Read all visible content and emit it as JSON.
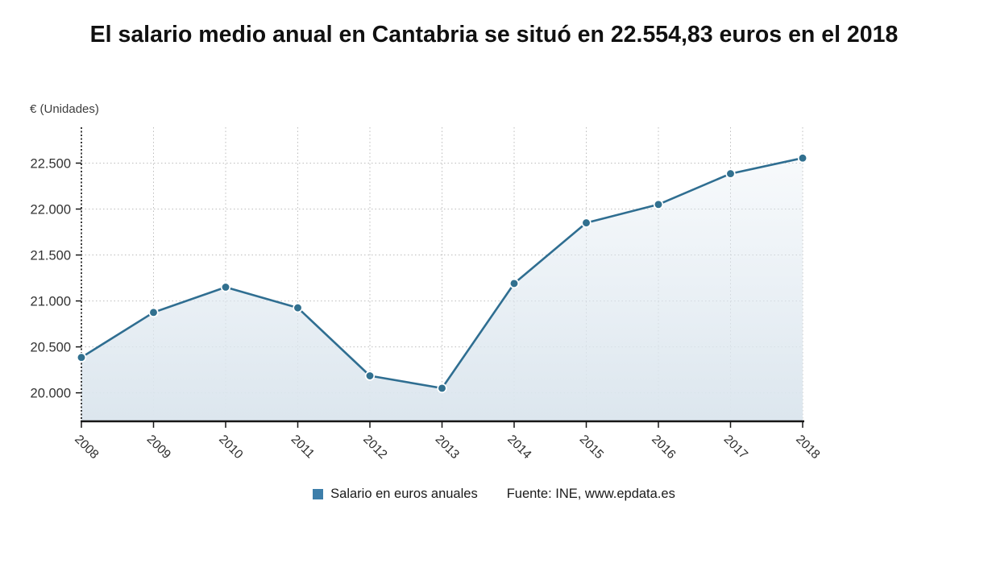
{
  "chart_data": {
    "type": "area",
    "title": "El salario medio anual en Cantabria se situó en 22.554,83 euros en el 2018",
    "unit_label": "€ (Unidades)",
    "categories": [
      "2008",
      "2009",
      "2010",
      "2011",
      "2012",
      "2013",
      "2014",
      "2015",
      "2016",
      "2017",
      "2018"
    ],
    "series": [
      {
        "name": "Salario en euros anuales",
        "values": [
          20385,
          20875,
          21150,
          20925,
          20185,
          20050,
          21190,
          21850,
          22050,
          22385,
          22554.83
        ]
      }
    ],
    "y_ticks": [
      {
        "value": 20000,
        "label": "20.000"
      },
      {
        "value": 20500,
        "label": "20.500"
      },
      {
        "value": 21000,
        "label": "21.000"
      },
      {
        "value": 21500,
        "label": "21.500"
      },
      {
        "value": 22000,
        "label": "22.000"
      },
      {
        "value": 22500,
        "label": "22.500"
      }
    ],
    "ylim": [
      19690,
      22890
    ],
    "grid": true,
    "legend_position": "bottom",
    "source": "Fuente: INE, www.epdata.es",
    "colors": {
      "line": "#2f6e91",
      "marker": "#31708f",
      "marker_stroke": "#ffffff",
      "legend_swatch": "#3d7eaa",
      "area_top": "rgba(223,233,241,0.15)",
      "area_bottom": "#dce6ee",
      "axis": "#161616",
      "gridline": "#bdbdbd",
      "tick_text": "#333333",
      "x_tick_text": "#2b2b2b"
    }
  }
}
